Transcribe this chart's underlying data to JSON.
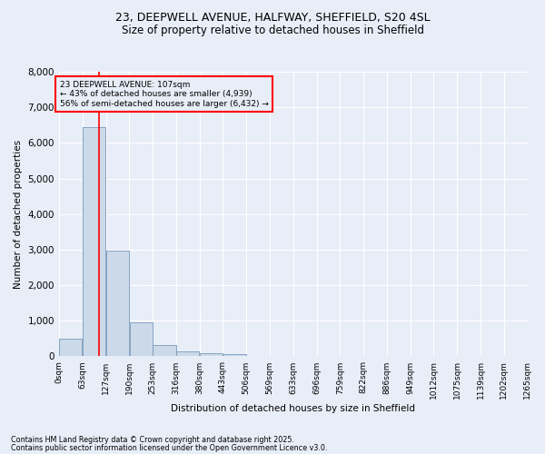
{
  "title_line1": "23, DEEPWELL AVENUE, HALFWAY, SHEFFIELD, S20 4SL",
  "title_line2": "Size of property relative to detached houses in Sheffield",
  "xlabel": "Distribution of detached houses by size in Sheffield",
  "ylabel": "Number of detached properties",
  "bar_color": "#ccd9e8",
  "bar_edge_color": "#7799bb",
  "vline_color": "red",
  "vline_x": 107,
  "annotation_title": "23 DEEPWELL AVENUE: 107sqm",
  "annotation_line2": "← 43% of detached houses are smaller (4,939)",
  "annotation_line3": "56% of semi-detached houses are larger (6,432) →",
  "annotation_box_color": "red",
  "footnote1": "Contains HM Land Registry data © Crown copyright and database right 2025.",
  "footnote2": "Contains public sector information licensed under the Open Government Licence v3.0.",
  "bin_edges": [
    0,
    63,
    127,
    190,
    253,
    316,
    380,
    443,
    506,
    569,
    633,
    696,
    759,
    822,
    886,
    949,
    1012,
    1075,
    1139,
    1202,
    1265
  ],
  "bin_labels": [
    "0sqm",
    "63sqm",
    "127sqm",
    "190sqm",
    "253sqm",
    "316sqm",
    "380sqm",
    "443sqm",
    "506sqm",
    "569sqm",
    "633sqm",
    "696sqm",
    "759sqm",
    "822sqm",
    "886sqm",
    "949sqm",
    "1012sqm",
    "1075sqm",
    "1139sqm",
    "1202sqm",
    "1265sqm"
  ],
  "bar_heights": [
    500,
    6450,
    2970,
    960,
    330,
    150,
    90,
    60,
    0,
    0,
    0,
    0,
    0,
    0,
    0,
    0,
    0,
    0,
    0,
    0
  ],
  "ylim": [
    0,
    8000
  ],
  "yticks": [
    0,
    1000,
    2000,
    3000,
    4000,
    5000,
    6000,
    7000,
    8000
  ],
  "background_color": "#e8eef8",
  "grid_color": "white",
  "title_fontsize": 9,
  "subtitle_fontsize": 8.5
}
